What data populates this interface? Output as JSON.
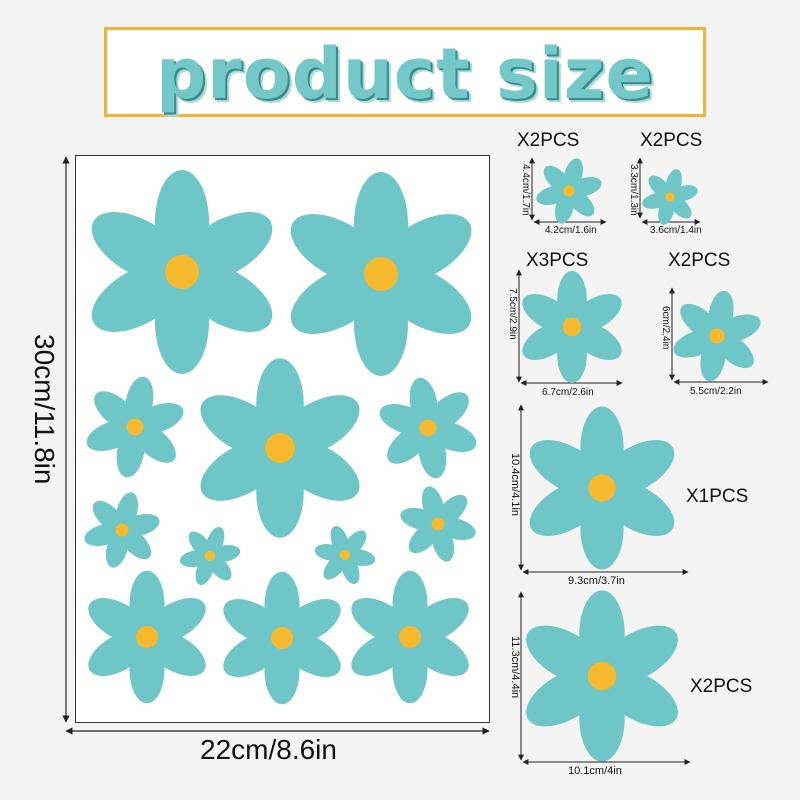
{
  "title": "product size",
  "colors": {
    "petal": "#6fc6c6",
    "center": "#f7b92d",
    "accent": "#f3b23a"
  },
  "sheet": {
    "width_label": "22cm/8.6in",
    "height_label": "30cm/11.8in"
  },
  "items": [
    {
      "qty": "X2PCS",
      "width": "4.2cm/1.6in",
      "height": "4.4cm/1.7in"
    },
    {
      "qty": "X2PCS",
      "width": "3.6cm/1.4in",
      "height": "3.3cm/1.3in"
    },
    {
      "qty": "X3PCS",
      "width": "6.7cm/2.6in",
      "height": "7.5cm/2.9in"
    },
    {
      "qty": "X2PCS",
      "width": "5.5cm/2.2in",
      "height": "6cm/2.4in"
    },
    {
      "qty": "X1PCS",
      "width": "9.3cm/3.7in",
      "height": "10.4cm/4.1in"
    },
    {
      "qty": "X2PCS",
      "width": "10.1cm/4in",
      "height": "11.3cm/4.4in"
    }
  ]
}
